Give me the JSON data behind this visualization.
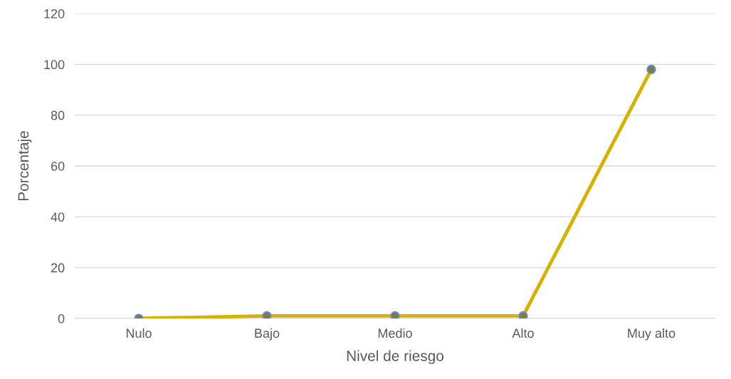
{
  "chart_data": {
    "type": "line",
    "xlabel": "Nivel de riesgo",
    "ylabel": "Porcentaje",
    "categories": [
      "Nulo",
      "Bajo",
      "Medio",
      "Alto",
      "Muy alto"
    ],
    "series": [
      {
        "color": "#d8b000",
        "values": [
          0,
          1,
          1,
          1,
          98
        ]
      }
    ],
    "ylim": [
      0,
      120
    ],
    "yticks": [
      0,
      20,
      40,
      60,
      80,
      100,
      120
    ],
    "grid": "y",
    "marker": "circle",
    "line_style": "solid"
  }
}
